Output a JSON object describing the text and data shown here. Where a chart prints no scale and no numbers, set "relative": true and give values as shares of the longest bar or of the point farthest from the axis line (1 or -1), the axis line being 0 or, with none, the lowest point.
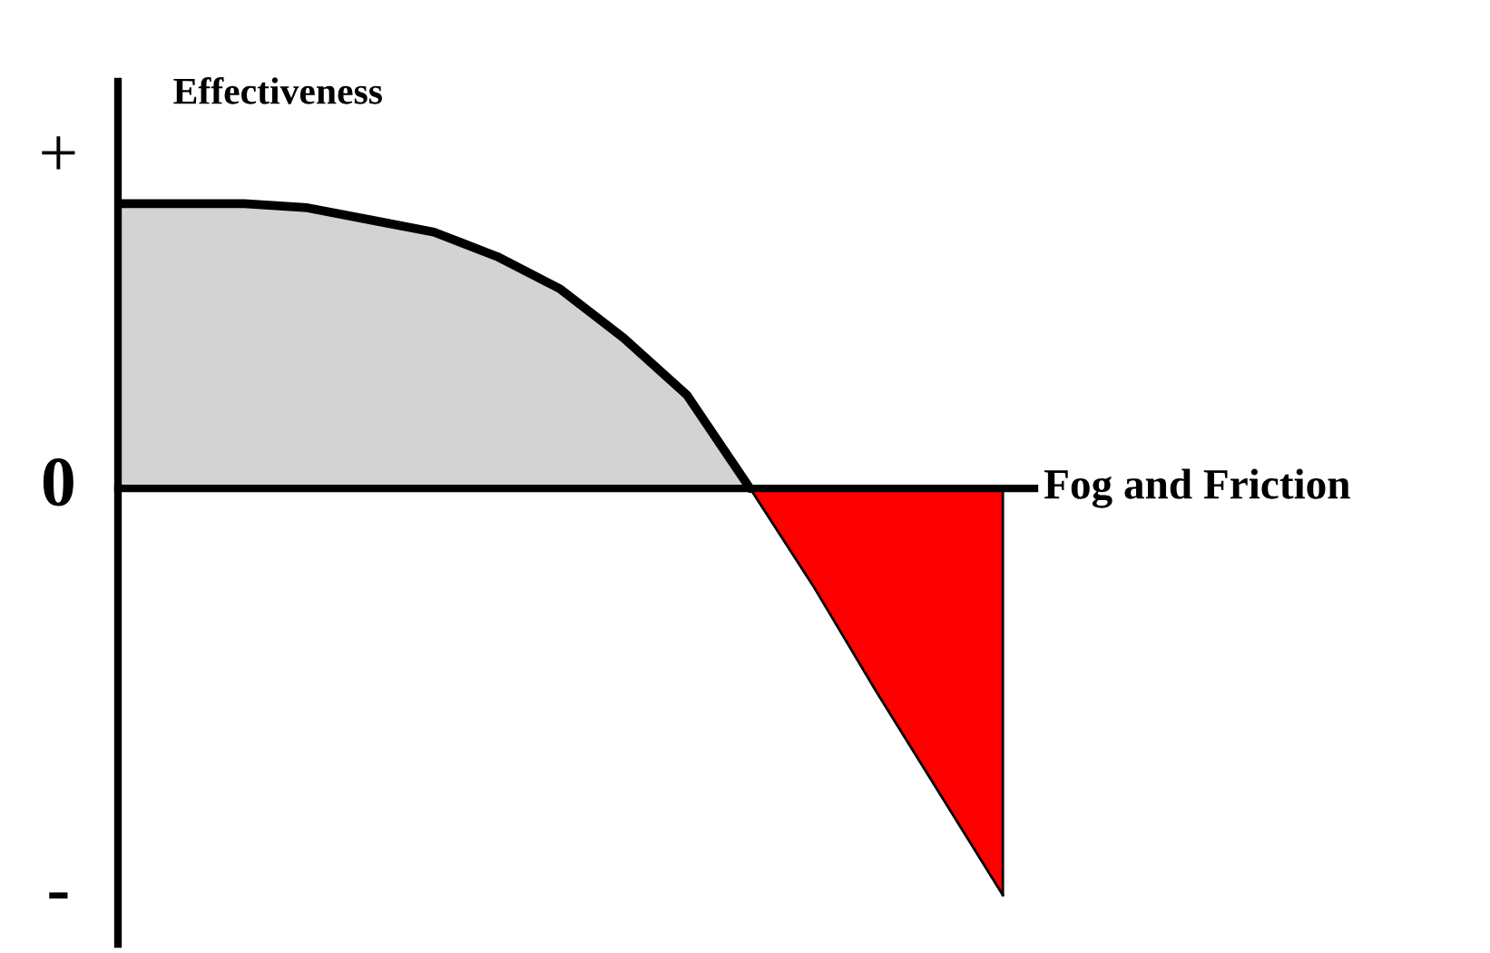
{
  "chart_data": {
    "type": "area",
    "relative": true,
    "xlabel": "Fog and Friction",
    "ylabel": "Effectiveness",
    "categories": [
      null,
      null,
      null,
      null,
      null,
      null,
      null,
      null,
      null,
      null,
      null,
      null,
      null,
      null,
      null
    ],
    "series": [
      {
        "color": "#d3d3d3",
        "values": [
          0.7,
          0.7,
          0.7,
          0.69,
          0.66,
          0.63,
          0.57,
          0.49,
          0.37,
          0.23,
          0,
          null,
          null,
          null,
          null
        ]
      },
      {
        "color": "#ff0000",
        "values": [
          null,
          null,
          null,
          null,
          null,
          null,
          null,
          null,
          null,
          null,
          0,
          -0.24,
          -0.5,
          -0.75,
          -1
        ]
      }
    ],
    "annotations": [
      "+",
      "0",
      "-"
    ]
  }
}
